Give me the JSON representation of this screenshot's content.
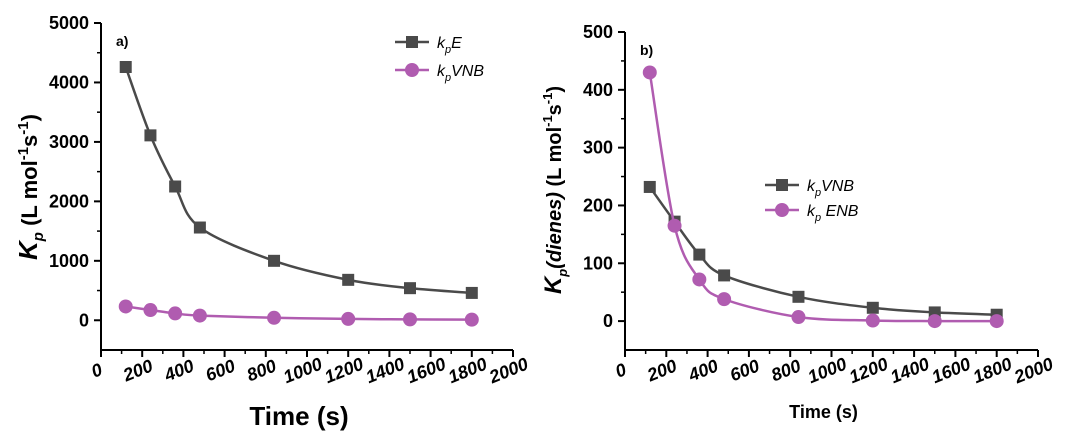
{
  "chart_data": [
    {
      "type": "line",
      "panel_label": "a)",
      "xlabel": "Time (s)",
      "ylabel": {
        "main": "K",
        "sub": "p",
        "rest": " (L mol",
        "sup1": "-1",
        "mid": "s",
        "sup2": "-1",
        "close": ")"
      },
      "xlim": [
        0,
        2000
      ],
      "ylim": [
        -500,
        5000
      ],
      "xticks": [
        0,
        200,
        400,
        600,
        800,
        1000,
        1200,
        1400,
        1600,
        1800,
        2000
      ],
      "yticks": [
        0,
        1000,
        2000,
        3000,
        4000,
        5000
      ],
      "legend_position": "top-right",
      "series": [
        {
          "name": "kpE",
          "name_parts": {
            "k": "k",
            "sub": "p",
            "rest": "E"
          },
          "marker": "square",
          "color": "#4a4a4a",
          "x": [
            120,
            240,
            360,
            480,
            840,
            1200,
            1500,
            1800
          ],
          "y": [
            4260,
            3110,
            2250,
            1560,
            1000,
            680,
            540,
            460
          ]
        },
        {
          "name": "kpVNB",
          "name_parts": {
            "k": "k",
            "sub": "p",
            "rest": "VNB"
          },
          "marker": "circle",
          "color": "#b05cb0",
          "x": [
            120,
            240,
            360,
            480,
            840,
            1200,
            1500,
            1800
          ],
          "y": [
            232,
            172,
            115,
            79,
            42,
            23,
            15,
            11
          ]
        }
      ]
    },
    {
      "type": "line",
      "panel_label": "b)",
      "xlabel": "Time (s)",
      "ylabel": {
        "main": "K",
        "sub": "p",
        "italic": "(dienes)",
        "rest": " (L mol",
        "sup1": "-1",
        "mid": "s",
        "sup2": "-1",
        "close": ")"
      },
      "xlim": [
        0,
        2000
      ],
      "ylim": [
        -50,
        500
      ],
      "xticks": [
        0,
        200,
        400,
        600,
        800,
        1000,
        1200,
        1400,
        1600,
        1800,
        2000
      ],
      "yticks": [
        0,
        100,
        200,
        300,
        400,
        500
      ],
      "legend_position": "center-right",
      "series": [
        {
          "name": "kpVNB",
          "name_parts": {
            "k": "k",
            "sub": "p",
            "rest": "VNB"
          },
          "marker": "square",
          "color": "#4a4a4a",
          "x": [
            120,
            240,
            360,
            480,
            840,
            1200,
            1500,
            1800
          ],
          "y": [
            232,
            172,
            115,
            79,
            42,
            23,
            15,
            11
          ]
        },
        {
          "name": "kp ENB",
          "name_parts": {
            "k": "k",
            "sub": "p",
            "rest": " ENB"
          },
          "marker": "circle",
          "color": "#b05cb0",
          "x": [
            120,
            240,
            360,
            480,
            840,
            1200,
            1500,
            1800
          ],
          "y": [
            430,
            165,
            72,
            38,
            7,
            1,
            0,
            0
          ]
        }
      ]
    }
  ]
}
